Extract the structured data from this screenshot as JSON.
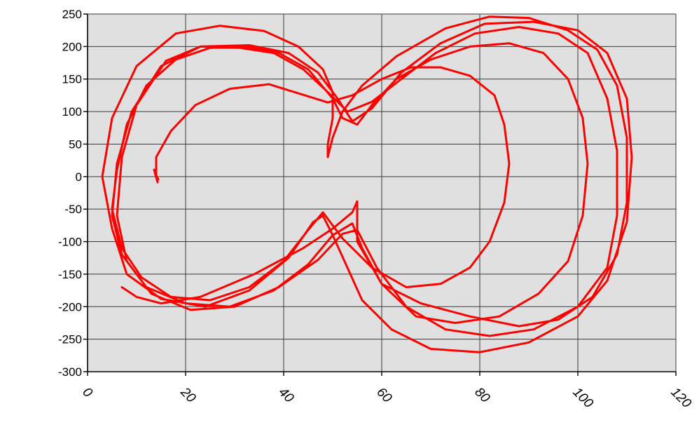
{
  "chart_data": {
    "type": "line",
    "title": "",
    "xlabel": "",
    "ylabel": "",
    "xlim": [
      0,
      120
    ],
    "ylim": [
      -300,
      250
    ],
    "x_ticks": [
      0,
      20,
      40,
      60,
      80,
      100,
      120
    ],
    "y_ticks": [
      250,
      200,
      150,
      100,
      50,
      0,
      -50,
      -100,
      -150,
      -200,
      -250,
      -300
    ],
    "grid": true,
    "legend": "none",
    "colors": {
      "series": "#ff0000",
      "plot_background": "#e0e0e0",
      "grid": "#3a3a3a"
    },
    "series": [
      {
        "color": "#ff0000",
        "points": [
          [
            14,
            2
          ],
          [
            14,
            30
          ],
          [
            17,
            70
          ],
          [
            22,
            110
          ],
          [
            29,
            135
          ],
          [
            37,
            142
          ],
          [
            43,
            128
          ],
          [
            49,
            114
          ],
          [
            54,
            125
          ],
          [
            60,
            150
          ],
          [
            66,
            168
          ],
          [
            72,
            168
          ],
          [
            78,
            155
          ],
          [
            83,
            125
          ],
          [
            85,
            80
          ],
          [
            86,
            20
          ],
          [
            85,
            -40
          ],
          [
            82,
            -100
          ],
          [
            78,
            -140
          ],
          [
            72,
            -165
          ],
          [
            65,
            -170
          ],
          [
            58,
            -140
          ],
          [
            52,
            -95
          ],
          [
            48,
            -55
          ],
          [
            45,
            -82
          ],
          [
            40,
            -130
          ],
          [
            33,
            -170
          ],
          [
            25,
            -190
          ],
          [
            17,
            -185
          ],
          [
            11,
            -155
          ],
          [
            7,
            -110
          ],
          [
            5,
            -50
          ],
          [
            6,
            10
          ],
          [
            8,
            80
          ],
          [
            12,
            140
          ],
          [
            18,
            180
          ],
          [
            25,
            198
          ],
          [
            32,
            200
          ],
          [
            39,
            190
          ],
          [
            45,
            165
          ],
          [
            50,
            120
          ],
          [
            52,
            90
          ],
          [
            55,
            80
          ],
          [
            58,
            110
          ],
          [
            63,
            150
          ],
          [
            70,
            180
          ],
          [
            78,
            200
          ],
          [
            86,
            205
          ],
          [
            93,
            190
          ],
          [
            98,
            150
          ],
          [
            101,
            90
          ],
          [
            102,
            20
          ],
          [
            101,
            -60
          ],
          [
            98,
            -130
          ],
          [
            92,
            -180
          ],
          [
            84,
            -215
          ],
          [
            75,
            -225
          ],
          [
            67,
            -215
          ],
          [
            60,
            -165
          ],
          [
            56,
            -110
          ],
          [
            54,
            -72
          ],
          [
            50,
            -90
          ],
          [
            45,
            -135
          ],
          [
            38,
            -175
          ],
          [
            29,
            -200
          ],
          [
            20,
            -195
          ],
          [
            12,
            -170
          ],
          [
            7,
            -120
          ],
          [
            5,
            -60
          ],
          [
            6,
            20
          ],
          [
            9,
            100
          ],
          [
            15,
            170
          ],
          [
            23,
            200
          ],
          [
            31,
            198
          ],
          [
            38,
            190
          ],
          [
            44,
            165
          ],
          [
            49,
            130
          ],
          [
            53,
            100
          ],
          [
            58,
            115
          ],
          [
            64,
            150
          ],
          [
            71,
            190
          ],
          [
            79,
            220
          ],
          [
            88,
            230
          ],
          [
            96,
            220
          ],
          [
            102,
            190
          ],
          [
            106,
            120
          ],
          [
            108,
            40
          ],
          [
            108,
            -60
          ],
          [
            106,
            -140
          ],
          [
            100,
            -200
          ],
          [
            91,
            -235
          ],
          [
            82,
            -245
          ],
          [
            73,
            -235
          ],
          [
            65,
            -200
          ],
          [
            59,
            -140
          ],
          [
            55,
            -82
          ],
          [
            52,
            -88
          ],
          [
            47,
            -128
          ],
          [
            39,
            -170
          ],
          [
            30,
            -200
          ],
          [
            21,
            -205
          ],
          [
            13,
            -180
          ],
          [
            8,
            -130
          ],
          [
            6,
            -60
          ],
          [
            7,
            30
          ],
          [
            10,
            110
          ],
          [
            16,
            178
          ],
          [
            23,
            200
          ],
          [
            33,
            202
          ],
          [
            41,
            190
          ],
          [
            47,
            160
          ],
          [
            51,
            120
          ],
          [
            54,
            85
          ],
          [
            58,
            105
          ],
          [
            64,
            160
          ],
          [
            72,
            205
          ],
          [
            81,
            235
          ],
          [
            91,
            238
          ],
          [
            100,
            225
          ],
          [
            106,
            190
          ],
          [
            110,
            120
          ],
          [
            111,
            30
          ],
          [
            110,
            -70
          ],
          [
            106,
            -160
          ],
          [
            100,
            -215
          ],
          [
            90,
            -255
          ],
          [
            80,
            -270
          ],
          [
            70,
            -265
          ],
          [
            62,
            -235
          ],
          [
            56,
            -190
          ],
          [
            53,
            -140
          ],
          [
            50,
            -90
          ],
          [
            48,
            -60
          ],
          [
            46,
            -70
          ],
          [
            41,
            -125
          ],
          [
            33,
            -175
          ],
          [
            24,
            -200
          ],
          [
            15,
            -188
          ],
          [
            8,
            -150
          ],
          [
            5,
            -80
          ],
          [
            3,
            0
          ],
          [
            5,
            90
          ],
          [
            10,
            170
          ],
          [
            18,
            220
          ],
          [
            27,
            232
          ],
          [
            36,
            224
          ],
          [
            43,
            200
          ],
          [
            48,
            165
          ],
          [
            50,
            130
          ],
          [
            50,
            90
          ],
          [
            49,
            50
          ],
          [
            49,
            30
          ],
          [
            50,
            60
          ],
          [
            52,
            100
          ],
          [
            56,
            140
          ],
          [
            63,
            185
          ],
          [
            73,
            228
          ],
          [
            82,
            246
          ],
          [
            90,
            244
          ],
          [
            98,
            225
          ],
          [
            104,
            195
          ],
          [
            108,
            140
          ],
          [
            110,
            60
          ],
          [
            110,
            -40
          ],
          [
            108,
            -120
          ],
          [
            103,
            -185
          ],
          [
            96,
            -220
          ],
          [
            88,
            -230
          ],
          [
            78,
            -215
          ],
          [
            68,
            -195
          ],
          [
            60,
            -165
          ],
          [
            55,
            -100
          ],
          [
            55,
            -38
          ],
          [
            54,
            -55
          ],
          [
            50,
            -80
          ],
          [
            44,
            -110
          ],
          [
            34,
            -150
          ],
          [
            23,
            -185
          ],
          [
            15,
            -195
          ],
          [
            10,
            -185
          ],
          [
            7,
            -170
          ]
        ]
      }
    ]
  }
}
